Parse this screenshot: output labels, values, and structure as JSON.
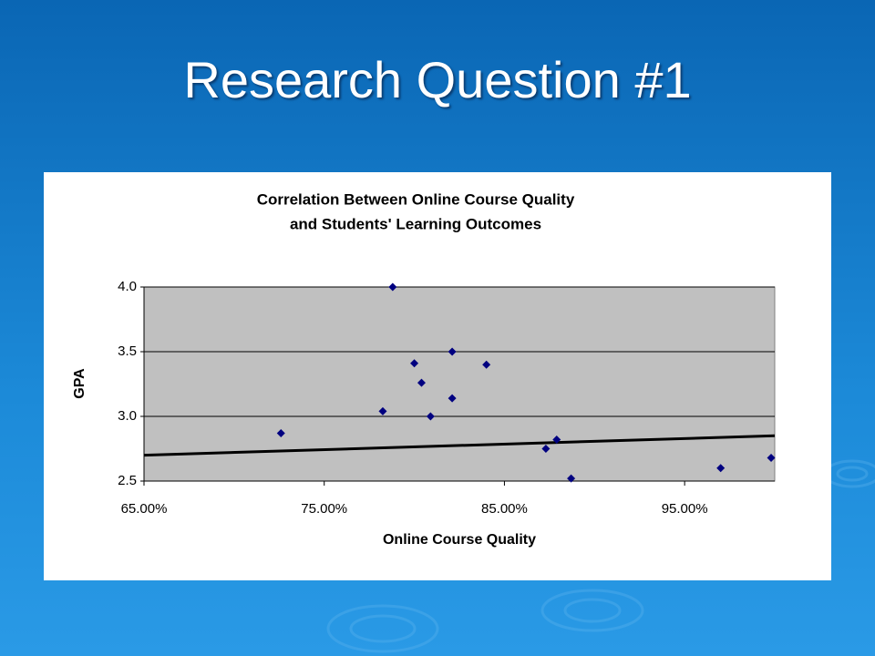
{
  "slide_title": "Research Question #1",
  "chart_data": {
    "type": "scatter",
    "title": [
      "Correlation Between Online Course Quality",
      "and Students' Learning Outcomes"
    ],
    "x_label": "Online Course Quality",
    "y_label": "GPA",
    "x": [
      72.6,
      78.25,
      78.8,
      80.0,
      80.4,
      80.9,
      82.1,
      82.1,
      84.0,
      87.3,
      87.9,
      88.7,
      97.0,
      99.8
    ],
    "values": [
      2.87,
      3.04,
      4.0,
      3.41,
      3.26,
      3.0,
      3.5,
      3.14,
      3.4,
      2.75,
      2.82,
      2.52,
      2.6,
      2.68
    ],
    "color": "#000080",
    "trendline": {
      "x": [
        65,
        100
      ],
      "values": [
        2.7,
        2.85
      ],
      "color": "#000000"
    },
    "xlim": [
      65,
      100
    ],
    "ylim": [
      2.5,
      4.0
    ],
    "xticks": [
      {
        "value": 65,
        "label": "65.00%"
      },
      {
        "value": 75,
        "label": "75.00%"
      },
      {
        "value": 85,
        "label": "85.00%"
      },
      {
        "value": 95,
        "label": "95.00%"
      }
    ],
    "yticks": [
      {
        "value": 2.5,
        "label": "2.5"
      },
      {
        "value": 3.0,
        "label": "3.0"
      },
      {
        "value": 3.5,
        "label": "3.5"
      },
      {
        "value": 4.0,
        "label": "4.0"
      }
    ],
    "grid": true
  }
}
